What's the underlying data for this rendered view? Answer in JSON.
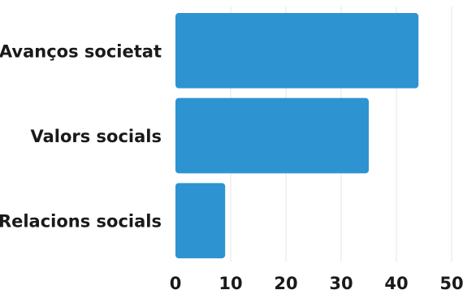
{
  "chart_data": {
    "type": "bar",
    "orientation": "horizontal",
    "categories": [
      "Avanços societat",
      "Valors socials",
      "Relacions socials"
    ],
    "values": [
      44,
      35,
      9
    ],
    "xlim": [
      0,
      50
    ],
    "xticks": [
      0,
      10,
      20,
      30,
      40,
      50
    ],
    "title": "",
    "xlabel": "",
    "ylabel": "",
    "grid": "vertical",
    "bar_color": "#2e93d1"
  }
}
